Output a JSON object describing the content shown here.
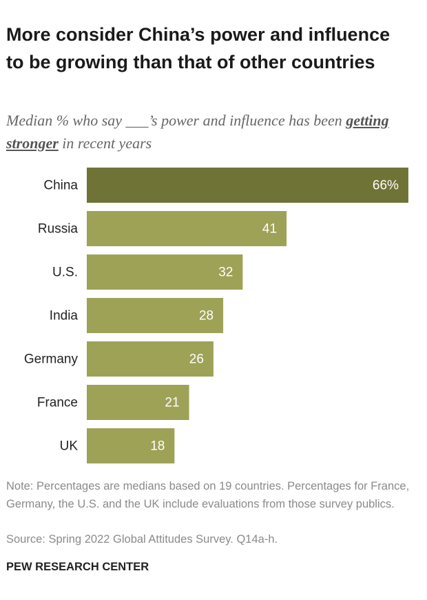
{
  "chart_data": {
    "type": "bar",
    "orientation": "horizontal",
    "title": "More consider China’s power and influence to be growing than that of other countries",
    "subtitle": [
      "Median % who say ___’s power and influence has been",
      "getting stronger",
      "in recent years"
    ],
    "categories": [
      "China",
      "Russia",
      "U.S.",
      "India",
      "Germany",
      "France",
      "UK"
    ],
    "values": [
      66,
      41,
      32,
      28,
      26,
      21,
      18
    ],
    "value_labels": [
      "66%",
      "41",
      "32",
      "28",
      "26",
      "21",
      "18"
    ],
    "colors": [
      "#6f7336",
      "#9da257",
      "#9da257",
      "#9da257",
      "#9da257",
      "#9da257",
      "#9da257"
    ],
    "note": "Note: Percentages are medians based on 19 countries. Percentages for France, Germany, the U.S. and the UK include evaluations from those survey publics.",
    "source": "Source: Spring 2022 Global Attitudes Survey. Q14a-h.",
    "footer": "PEW RESEARCH CENTER"
  }
}
